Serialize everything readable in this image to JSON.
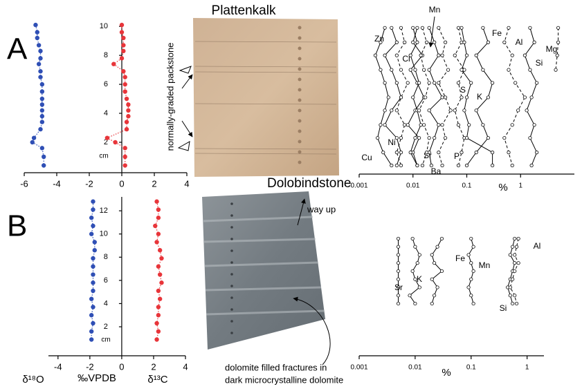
{
  "panels": [
    {
      "label": "A",
      "photo_title": "Plattenkalk",
      "annotations": [
        "normally-graded packstone"
      ]
    },
    {
      "label": "B",
      "photo_title": "Dolobindstone",
      "annotations": [
        "way up",
        "dolomite filled fractures in",
        "dark microcrystalline dolomite"
      ]
    }
  ],
  "chart_data": [
    {
      "type": "scatter",
      "ylabel": "cm",
      "xlim": [
        -6,
        4
      ],
      "xticks": [
        -6,
        -4,
        -2,
        0,
        2,
        4
      ],
      "ylim": [
        -0.1,
        10.2
      ],
      "yticks": [
        2,
        4,
        6,
        8,
        10
      ],
      "y": [
        10.1,
        9.6,
        9.2,
        8.7,
        8.3,
        7.8,
        7.4,
        6.9,
        6.5,
        6.0,
        5.5,
        5.0,
        4.6,
        4.2,
        3.8,
        3.4,
        2.9,
        2.3,
        2.0,
        1.6,
        1.0,
        0.4
      ],
      "series": [
        {
          "color": "#2f4fb5",
          "line_style": "dotted",
          "x": [
            -5.3,
            -5.2,
            -5.2,
            -5.1,
            -5.0,
            -5.0,
            -5.1,
            -5.0,
            -5.0,
            -4.9,
            -4.9,
            -4.9,
            -4.9,
            -4.9,
            -4.9,
            -4.9,
            -5.0,
            -5.4,
            -5.5,
            -4.9,
            -4.8,
            -4.8
          ]
        },
        {
          "color": "#e8353a",
          "line_style": "dotted",
          "x": [
            0,
            0,
            0.1,
            0.1,
            0.1,
            0,
            -0.5,
            0.1,
            0.2,
            0.2,
            0.2,
            0.3,
            0.4,
            0.4,
            0.4,
            0.3,
            0.3,
            -0.9,
            -0.4,
            0.2,
            0.2,
            0.2
          ]
        }
      ]
    },
    {
      "type": "scatter",
      "xlabel": "%",
      "xscale": "log",
      "xlim": [
        0.001,
        10
      ],
      "xticks": [
        0.001,
        0.01,
        0.1,
        1
      ],
      "ylim": [
        -0.1,
        10.2
      ],
      "y": [
        9.9,
        8.9,
        8.0,
        7.0,
        6.1,
        5.1,
        4.2,
        3.2,
        2.3,
        1.3,
        0.4
      ],
      "series": [
        {
          "name": "Zn",
          "color": "#000000",
          "line_style": "solid",
          "x": [
            0.004,
            0.005,
            0.003,
            0.004,
            0.005,
            0.006,
            0.004,
            0.003,
            0.005,
            0.006,
            0.005
          ]
        },
        {
          "name": "Cu",
          "color": "#000000",
          "line_style": "solid",
          "x": [
            0.003,
            0.0025,
            0.002,
            0.0025,
            0.003,
            0.0035,
            0.003,
            0.0025,
            0.0022,
            0.0028,
            0.004
          ]
        },
        {
          "name": "Ni",
          "color": "#000000",
          "line_style": "dashed",
          "x": [
            0.006,
            0.007,
            0.005,
            0.006,
            0.008,
            0.006,
            0.005,
            0.007,
            0.006,
            0.005,
            0.006
          ]
        },
        {
          "name": "Cl",
          "color": "#000000",
          "line_style": "solid",
          "x": [
            0.012,
            0.01,
            0.015,
            0.009,
            0.012,
            0.016,
            0.011,
            0.008,
            0.013,
            0.01,
            0.012
          ]
        },
        {
          "name": "Sr",
          "color": "#000000",
          "line_style": "solid",
          "x": [
            0.01,
            0.012,
            0.009,
            0.011,
            0.013,
            0.01,
            0.012,
            0.014,
            0.011,
            0.009,
            0.012
          ]
        },
        {
          "name": "Mn",
          "color": "#000000",
          "line_style": "solid",
          "x": [
            0.02,
            0.025,
            0.03,
            0.02,
            0.025,
            0.035,
            0.02,
            0.03,
            0.025,
            0.02,
            0.022
          ]
        },
        {
          "name": "Ba",
          "color": "#000000",
          "line_style": "dashed",
          "x": [
            0.015,
            0.018,
            0.014,
            0.016,
            0.02,
            0.017,
            0.013,
            0.016,
            0.02,
            0.018,
            0.015
          ]
        },
        {
          "name": "P",
          "color": "#000000",
          "line_style": "dashed",
          "x": [
            0.03,
            0.04,
            0.035,
            0.045,
            0.03,
            0.04,
            0.05,
            0.035,
            0.04,
            0.03,
            0.035
          ]
        },
        {
          "name": "S",
          "color": "#000000",
          "line_style": "dashed",
          "x": [
            0.07,
            0.08,
            0.06,
            0.09,
            0.07,
            0.08,
            0.06,
            0.07,
            0.09,
            0.08,
            0.07
          ]
        },
        {
          "name": "K",
          "color": "#000000",
          "line_style": "solid",
          "x": [
            0.08,
            0.09,
            0.1,
            0.08,
            0.12,
            0.1,
            0.09,
            0.11,
            0.1,
            0.3,
            0.3
          ]
        },
        {
          "name": "Fe",
          "color": "#000000",
          "line_style": "solid",
          "x": [
            0.2,
            0.25,
            0.15,
            0.2,
            0.3,
            0.25,
            0.15,
            0.2,
            0.25,
            0.15,
            0.1
          ]
        },
        {
          "name": "Al",
          "color": "#000000",
          "line_style": "dashed",
          "x": [
            0.6,
            0.5,
            0.7,
            0.6,
            0.8,
            1.2,
            0.9,
            0.7,
            0.5,
            0.6,
            0.7
          ]
        },
        {
          "name": "Si",
          "color": "#000000",
          "line_style": "solid",
          "x": [
            1.5,
            1.8,
            1.2,
            1.5,
            2.0,
            1.6,
            1.3,
            1.8,
            1.5,
            2.0,
            1.6
          ]
        },
        {
          "name": "Mg",
          "color": "#000000",
          "line_style": "dashed",
          "x": [
            5,
            5,
            4.8,
            4.5,
            null,
            null,
            null,
            null,
            null,
            null,
            null
          ]
        }
      ]
    },
    {
      "type": "scatter",
      "xlabel": "‰VPDB",
      "ylabel": "cm",
      "xlim": [
        -4.6,
        4
      ],
      "xticks": [
        -4,
        -2,
        0,
        2,
        4
      ],
      "ylim": [
        -0.5,
        13.2
      ],
      "yticks": [
        2,
        4,
        6,
        8,
        10,
        12
      ],
      "y": [
        12.8,
        12.1,
        11.4,
        10.7,
        10.0,
        9.3,
        8.6,
        7.9,
        7.2,
        6.5,
        5.8,
        5.1,
        4.4,
        3.7,
        3.0,
        2.3,
        1.6,
        0.9
      ],
      "series": [
        {
          "name": "δ¹⁸O",
          "color": "#2f4fb5",
          "line_style": "dotted",
          "x": [
            -1.8,
            -1.8,
            -1.9,
            -1.8,
            -1.9,
            -1.7,
            -1.7,
            -1.8,
            -1.8,
            -1.8,
            -1.8,
            -1.8,
            -1.9,
            -1.8,
            -1.9,
            -1.8,
            -1.9,
            -1.9
          ]
        },
        {
          "name": "δ¹³C",
          "color": "#e8353a",
          "line_style": "dotted",
          "x": [
            2.2,
            2.3,
            2.3,
            2.1,
            2.3,
            2.2,
            2.4,
            2.5,
            2.3,
            2.4,
            2.5,
            2.3,
            2.4,
            2.3,
            2.3,
            2.2,
            2.3,
            2.2
          ]
        }
      ]
    },
    {
      "type": "scatter",
      "xlabel": "%",
      "xscale": "log",
      "xlim": [
        0.001,
        2
      ],
      "xticks": [
        0.001,
        0.01,
        0.1,
        1
      ],
      "ylim": [
        -0.5,
        13.2
      ],
      "y": [
        9.6,
        8.9,
        8.2,
        7.5,
        6.8,
        6.1,
        5.4,
        4.7,
        4.0
      ],
      "series": [
        {
          "name": "Sr",
          "color": "#000000",
          "line_style": "solid",
          "x": [
            0.005,
            0.005,
            0.005,
            0.005,
            0.005,
            0.005,
            0.005,
            0.005,
            0.005
          ]
        },
        {
          "name": "K",
          "color": "#000000",
          "line_style": "solid",
          "x": [
            0.009,
            0.01,
            0.012,
            0.011,
            0.009,
            0.01,
            0.012,
            0.008,
            0.01
          ]
        },
        {
          "name": "Fe",
          "color": "#000000",
          "line_style": "solid",
          "x": [
            0.03,
            0.025,
            0.02,
            0.022,
            0.03,
            0.02,
            0.025,
            0.022,
            0.02
          ]
        },
        {
          "name": "Mn",
          "color": "#000000",
          "line_style": "solid",
          "x": [
            0.1,
            0.11,
            0.09,
            0.1,
            0.11,
            0.1,
            0.09,
            0.1,
            0.11
          ]
        },
        {
          "name": "Si",
          "color": "#000000",
          "line_style": "solid",
          "x": [
            0.6,
            0.55,
            0.5,
            0.6,
            0.55,
            0.5,
            0.45,
            0.5,
            0.55
          ]
        },
        {
          "name": "Al",
          "color": "#000000",
          "line_style": "dashed",
          "x": [
            0.7,
            0.65,
            0.6,
            0.7,
            0.6,
            0.55,
            0.5,
            0.6,
            0.65
          ]
        }
      ]
    }
  ]
}
